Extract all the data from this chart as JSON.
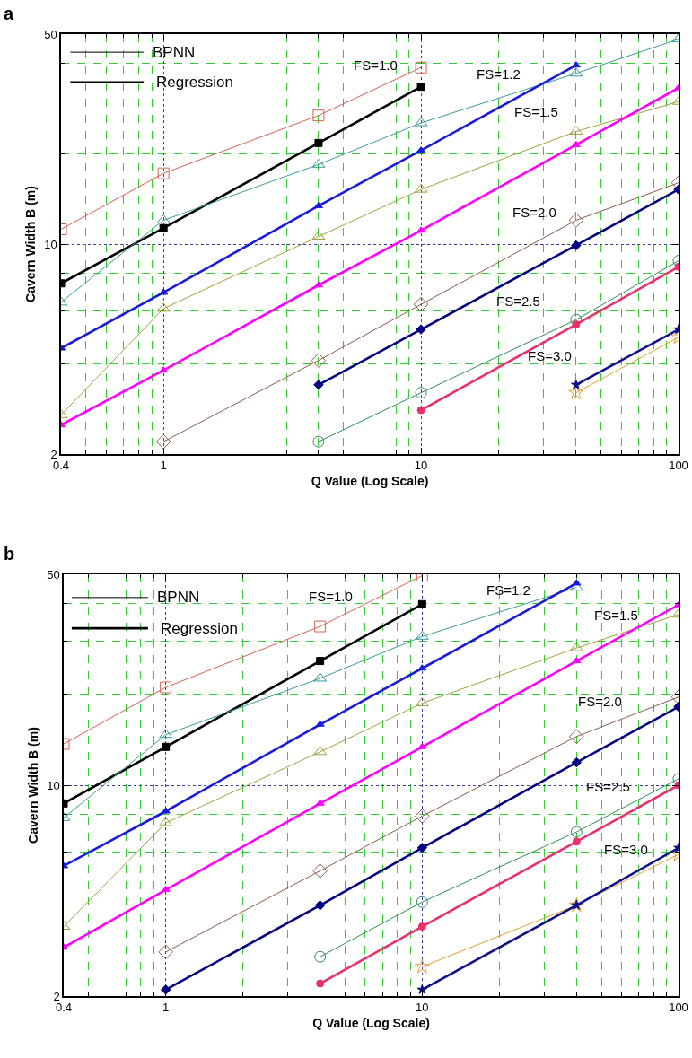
{
  "chart_data": [
    {
      "type": "line",
      "title": "a",
      "xlabel": "Q Value (Log Scale)",
      "ylabel": "Cavern Width B (m)",
      "log": "xy",
      "grid": true,
      "xlim": [
        0.4,
        100
      ],
      "xticks": [
        0.4,
        {
          "value": 0.5,
          "label": null
        },
        {
          "value": 0.6,
          "label": null
        },
        {
          "value": 0.7,
          "label": null
        },
        {
          "value": 0.8,
          "label": null
        },
        {
          "value": 0.9,
          "label": null
        },
        1,
        {
          "value": 2,
          "label": null
        },
        {
          "value": 3,
          "label": null
        },
        {
          "value": 4,
          "label": null
        },
        {
          "value": 5,
          "label": null
        },
        {
          "value": 6,
          "label": null
        },
        {
          "value": 7,
          "label": null
        },
        {
          "value": 8,
          "label": null
        },
        {
          "value": 9,
          "label": null
        },
        10,
        {
          "value": 20,
          "label": null
        },
        {
          "value": 30,
          "label": null
        },
        {
          "value": 40,
          "label": null
        },
        {
          "value": 50,
          "label": null
        },
        {
          "value": 60,
          "label": null
        },
        {
          "value": 70,
          "label": null
        },
        {
          "value": 80,
          "label": null
        },
        {
          "value": 90,
          "label": null
        },
        100
      ],
      "ylim": [
        2,
        50
      ],
      "yticks": [
        2,
        {
          "value": 4,
          "label": null
        },
        {
          "value": 6,
          "label": null
        },
        {
          "value": 8,
          "label": null
        },
        10,
        {
          "value": 20,
          "label": null
        },
        {
          "value": 30,
          "label": null
        },
        {
          "value": 40,
          "label": null
        },
        50
      ],
      "x": [
        0.4,
        1,
        4,
        10,
        40,
        100
      ],
      "series": [
        {
          "color": "#d4604f",
          "marker": "square",
          "values": [
            11.2,
            17.2,
            26.8,
            38.7,
            null,
            null
          ]
        },
        {
          "color": "#000000",
          "marker": "square",
          "values": [
            7.4,
            11.3,
            21.7,
            33.4,
            null,
            null
          ]
        },
        {
          "color": "#3a9a9a",
          "marker": "triangle",
          "values": [
            6.4,
            12.0,
            18.4,
            25.3,
            37.0,
            48.1
          ]
        },
        {
          "color": "#1a1adc",
          "marker": "triangle",
          "values": [
            4.5,
            6.9,
            13.4,
            20.5,
            39.4,
            null
          ]
        },
        {
          "color": "#a0a040",
          "marker": "triangle",
          "values": [
            2.7,
            6.1,
            10.6,
            15.2,
            23.7,
            29.8
          ]
        },
        {
          "color": "#ff00ff",
          "marker": "triangle",
          "values": [
            2.5,
            3.8,
            7.3,
            11.1,
            21.4,
            33.1
          ]
        },
        {
          "color": "#8b5a4a",
          "marker": "diamond",
          "values": [
            null,
            2.2,
            4.1,
            6.3,
            12.0,
            16.0
          ]
        },
        {
          "color": "#000080",
          "marker": "diamond",
          "values": [
            null,
            null,
            3.4,
            5.2,
            9.9,
            15.2
          ]
        },
        {
          "color": "#2e8b57",
          "marker": "circle",
          "values": [
            null,
            null,
            2.2,
            3.2,
            5.6,
            8.8
          ]
        },
        {
          "color": "#e8306a",
          "marker": "circle",
          "values": [
            null,
            null,
            null,
            2.8,
            5.4,
            8.4
          ]
        },
        {
          "color": "#e0a030",
          "marker": "star",
          "values": [
            null,
            null,
            null,
            null,
            3.2,
            4.9
          ]
        },
        {
          "color": "#10108a",
          "marker": "star",
          "values": [
            null,
            null,
            null,
            null,
            3.4,
            5.2
          ]
        }
      ],
      "annotations": [
        "BPNN",
        "Regression",
        "FS=1.0",
        "FS=1.2",
        "FS=1.5",
        "FS=2.0",
        "FS=2.5",
        "FS=3.0"
      ]
    },
    {
      "type": "line",
      "title": "b",
      "xlabel": "Q Value (Log Scale)",
      "ylabel": "Cavern Width B (m)",
      "log": "xy",
      "grid": true,
      "xlim": [
        0.4,
        100
      ],
      "xticks": [
        0.4,
        {
          "value": 0.5,
          "label": null
        },
        {
          "value": 0.6,
          "label": null
        },
        {
          "value": 0.7,
          "label": null
        },
        {
          "value": 0.8,
          "label": null
        },
        {
          "value": 0.9,
          "label": null
        },
        1,
        {
          "value": 2,
          "label": null
        },
        {
          "value": 3,
          "label": null
        },
        {
          "value": 4,
          "label": null
        },
        {
          "value": 5,
          "label": null
        },
        {
          "value": 6,
          "label": null
        },
        {
          "value": 7,
          "label": null
        },
        {
          "value": 8,
          "label": null
        },
        {
          "value": 9,
          "label": null
        },
        10,
        {
          "value": 20,
          "label": null
        },
        {
          "value": 30,
          "label": null
        },
        {
          "value": 40,
          "label": null
        },
        {
          "value": 50,
          "label": null
        },
        {
          "value": 60,
          "label": null
        },
        {
          "value": 70,
          "label": null
        },
        {
          "value": 80,
          "label": null
        },
        {
          "value": 90,
          "label": null
        },
        100
      ],
      "ylim": [
        2,
        50
      ],
      "yticks": [
        2,
        {
          "value": 4,
          "label": null
        },
        {
          "value": 6,
          "label": null
        },
        {
          "value": 8,
          "label": null
        },
        10,
        {
          "value": 20,
          "label": null
        },
        {
          "value": 30,
          "label": null
        },
        {
          "value": 40,
          "label": null
        },
        50
      ],
      "x": [
        0.4,
        1,
        4,
        10,
        40,
        100
      ],
      "series": [
        {
          "color": "#d4604f",
          "marker": "square",
          "values": [
            13.7,
            21.1,
            33.6,
            49.5,
            null,
            null
          ]
        },
        {
          "color": "#000000",
          "marker": "square",
          "values": [
            8.7,
            13.4,
            25.8,
            39.8,
            null,
            null
          ]
        },
        {
          "color": "#3a9a9a",
          "marker": "triangle",
          "values": [
            7.8,
            14.7,
            22.6,
            31.1,
            45.2,
            null
          ]
        },
        {
          "color": "#1a1adc",
          "marker": "triangle",
          "values": [
            5.4,
            8.2,
            15.9,
            24.4,
            46.7,
            null
          ]
        },
        {
          "color": "#a0a040",
          "marker": "triangle",
          "values": [
            3.4,
            7.5,
            12.9,
            18.7,
            28.5,
            36.8
          ]
        },
        {
          "color": "#ff00ff",
          "marker": "triangle",
          "values": [
            2.9,
            4.5,
            8.7,
            13.4,
            25.8,
            39.6
          ]
        },
        {
          "color": "#8b5a4a",
          "marker": "diamond",
          "values": [
            null,
            2.8,
            5.2,
            7.9,
            14.5,
            19.6
          ]
        },
        {
          "color": "#000080",
          "marker": "diamond",
          "values": [
            null,
            2.1,
            4.0,
            6.2,
            11.9,
            18.2
          ]
        },
        {
          "color": "#2e8b57",
          "marker": "circle",
          "values": [
            null,
            null,
            2.7,
            4.1,
            7.0,
            10.5
          ]
        },
        {
          "color": "#e8306a",
          "marker": "circle",
          "values": [
            null,
            null,
            2.2,
            3.4,
            6.5,
            10.0
          ]
        },
        {
          "color": "#e0a030",
          "marker": "star",
          "values": [
            null,
            null,
            null,
            2.5,
            4.0,
            5.9
          ]
        },
        {
          "color": "#10108a",
          "marker": "star",
          "values": [
            null,
            null,
            null,
            2.1,
            4.0,
            6.2
          ]
        }
      ],
      "annotations": [
        "BPNN",
        "Regression",
        "FS=1.0",
        "FS=1.2",
        "FS=1.5",
        "FS=2.0",
        "FS=2.5",
        "FS=3.0"
      ]
    }
  ]
}
